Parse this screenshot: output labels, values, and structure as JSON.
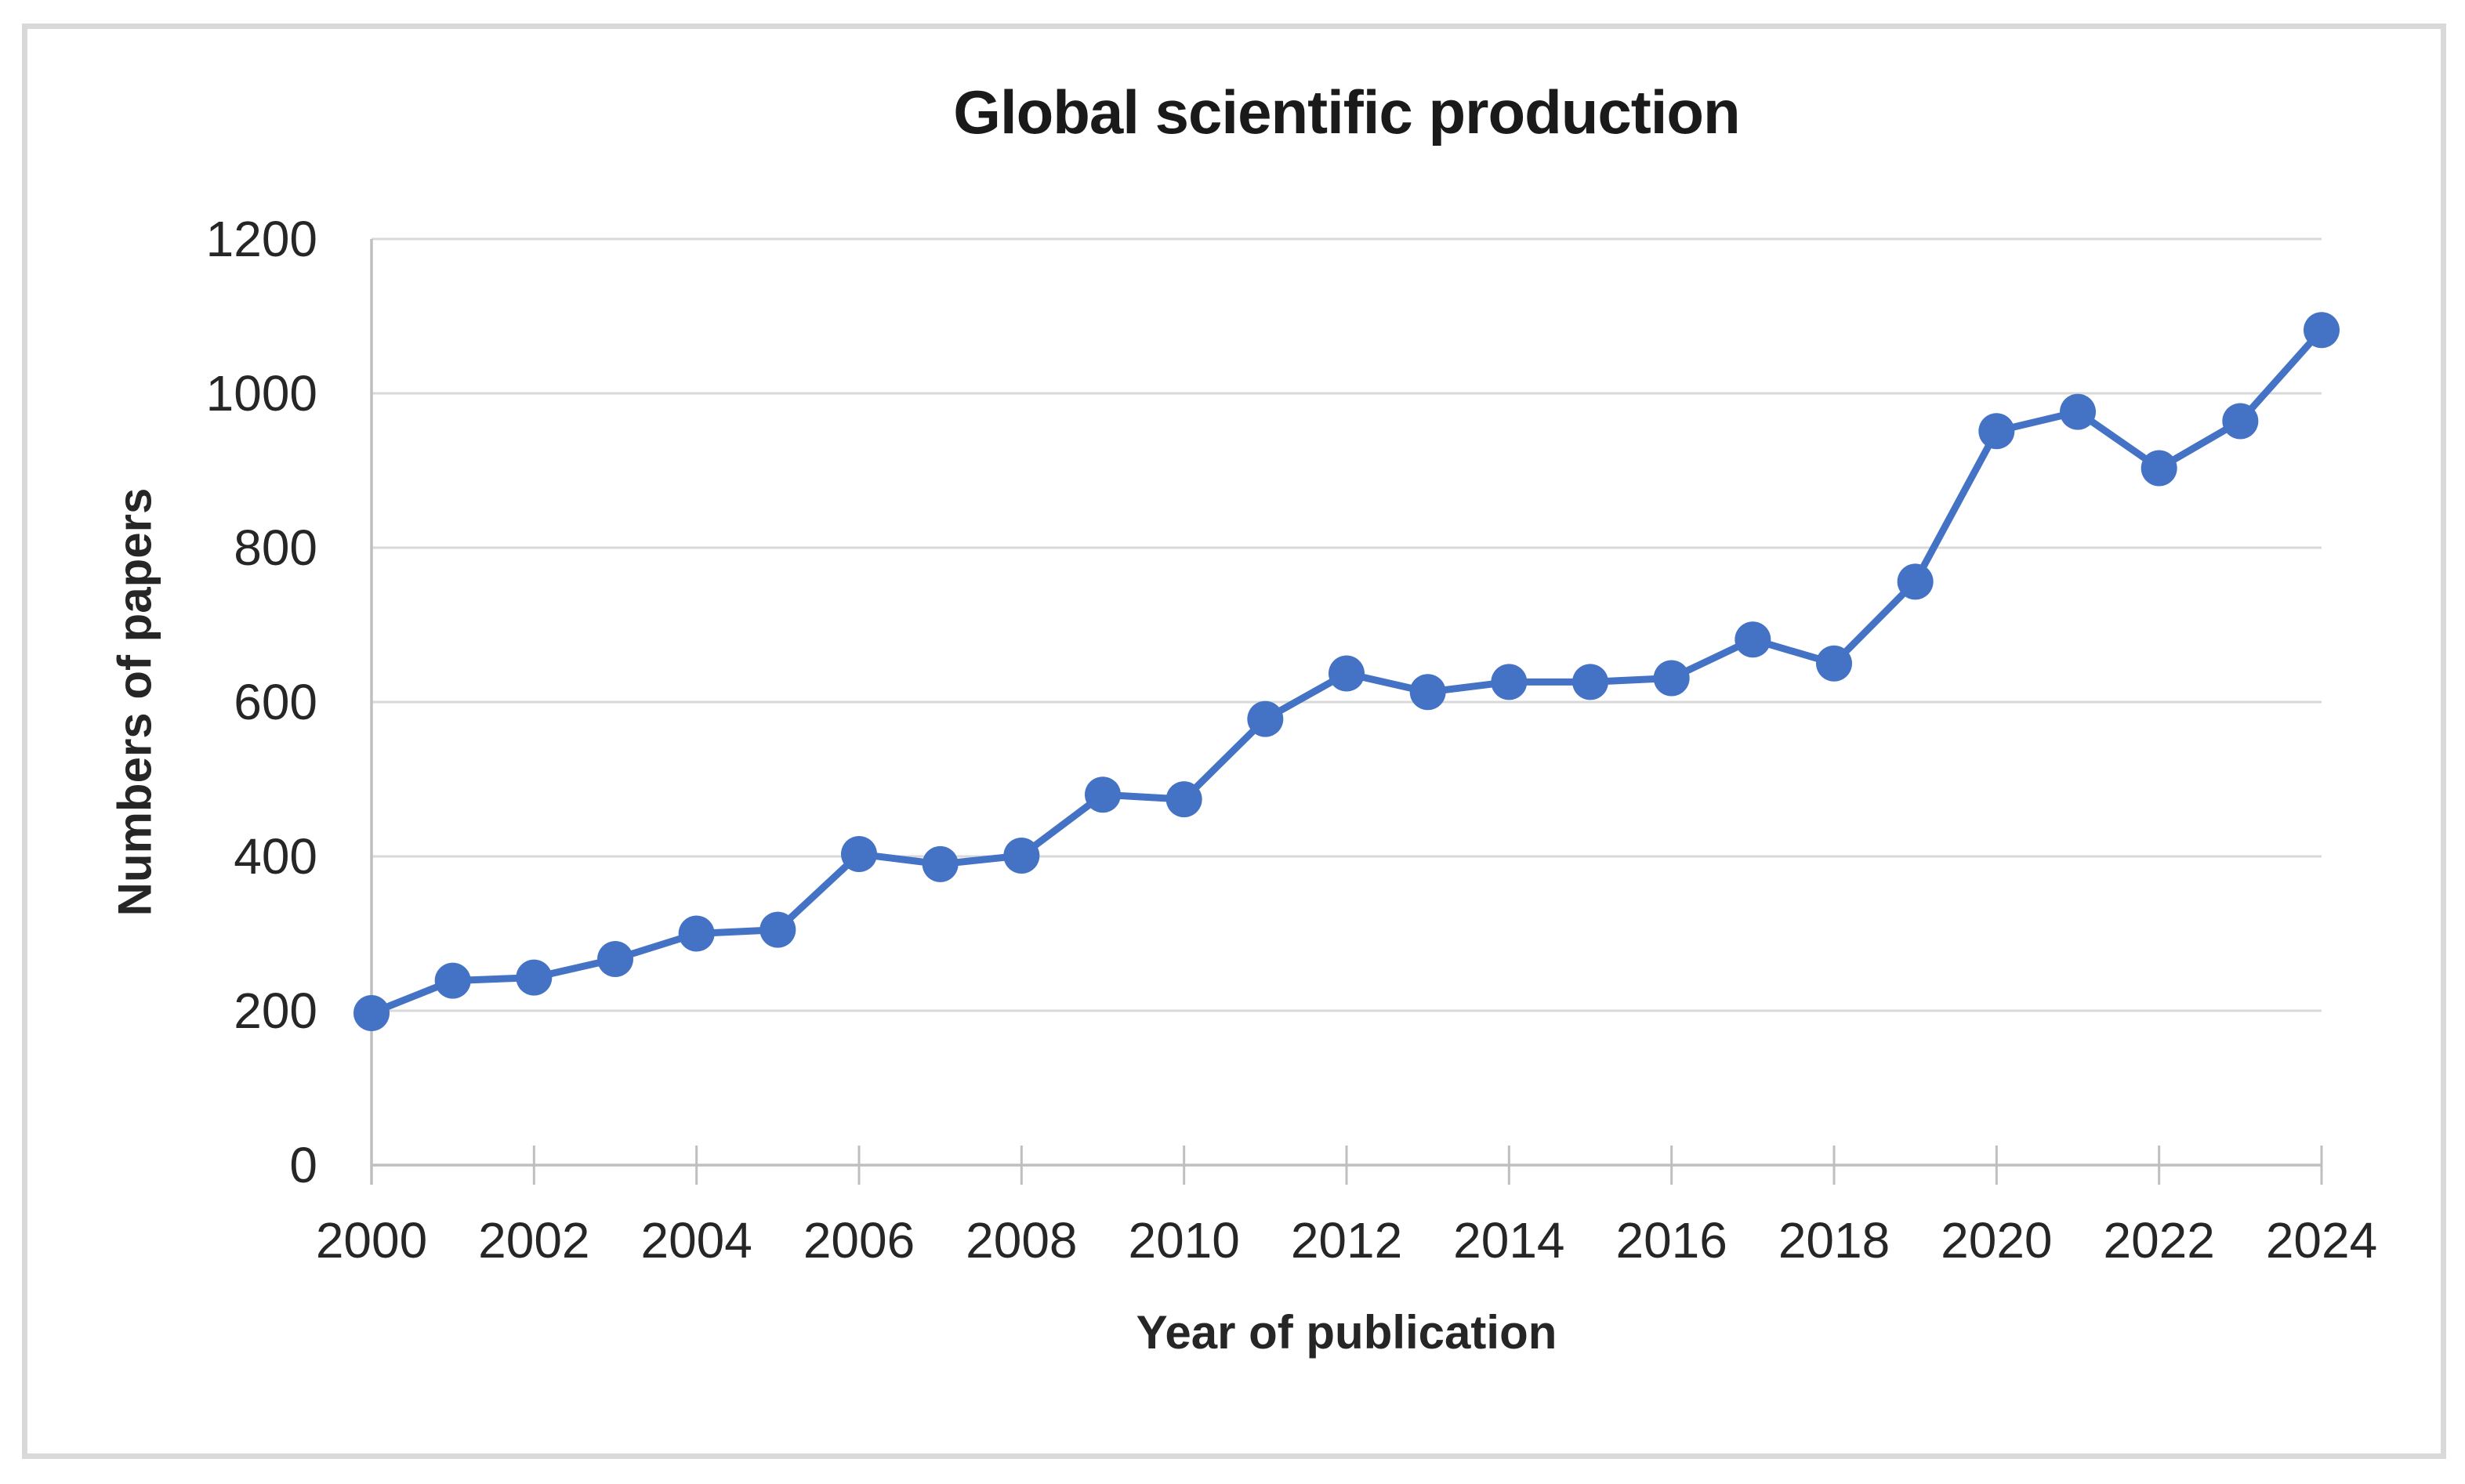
{
  "chart_data": {
    "type": "line",
    "title": "Global scientific production",
    "xlabel": "Year of publication",
    "ylabel": "Numbers of papers",
    "x": [
      2000,
      2001,
      2002,
      2003,
      2004,
      2005,
      2006,
      2007,
      2008,
      2009,
      2010,
      2011,
      2012,
      2013,
      2014,
      2015,
      2016,
      2017,
      2018,
      2019,
      2020,
      2021,
      2022,
      2023,
      2024
    ],
    "series": [
      {
        "name": "Numbers of papers",
        "values": [
          197,
          239,
          243,
          267,
          300,
          305,
          403,
          390,
          401,
          480,
          474,
          578,
          637,
          613,
          626,
          626,
          631,
          681,
          650,
          756,
          951,
          976,
          903,
          964,
          1082
        ]
      }
    ],
    "xticks": [
      2000,
      2002,
      2004,
      2006,
      2008,
      2010,
      2012,
      2014,
      2016,
      2018,
      2020,
      2022,
      2024
    ],
    "yticks": [
      0,
      200,
      400,
      600,
      800,
      1000,
      1200
    ],
    "ylim": [
      0,
      1200
    ],
    "xlim": [
      2000,
      2024
    ],
    "grid": "horizontal",
    "legend": "none",
    "marker": "circle",
    "colors": {
      "series": "#4472C4",
      "gridline": "#d9d9d9",
      "axis": "#bfbfbf",
      "tick_label": "#262626",
      "title": "#1a1a1a",
      "frame": "#d9d9d9"
    }
  }
}
